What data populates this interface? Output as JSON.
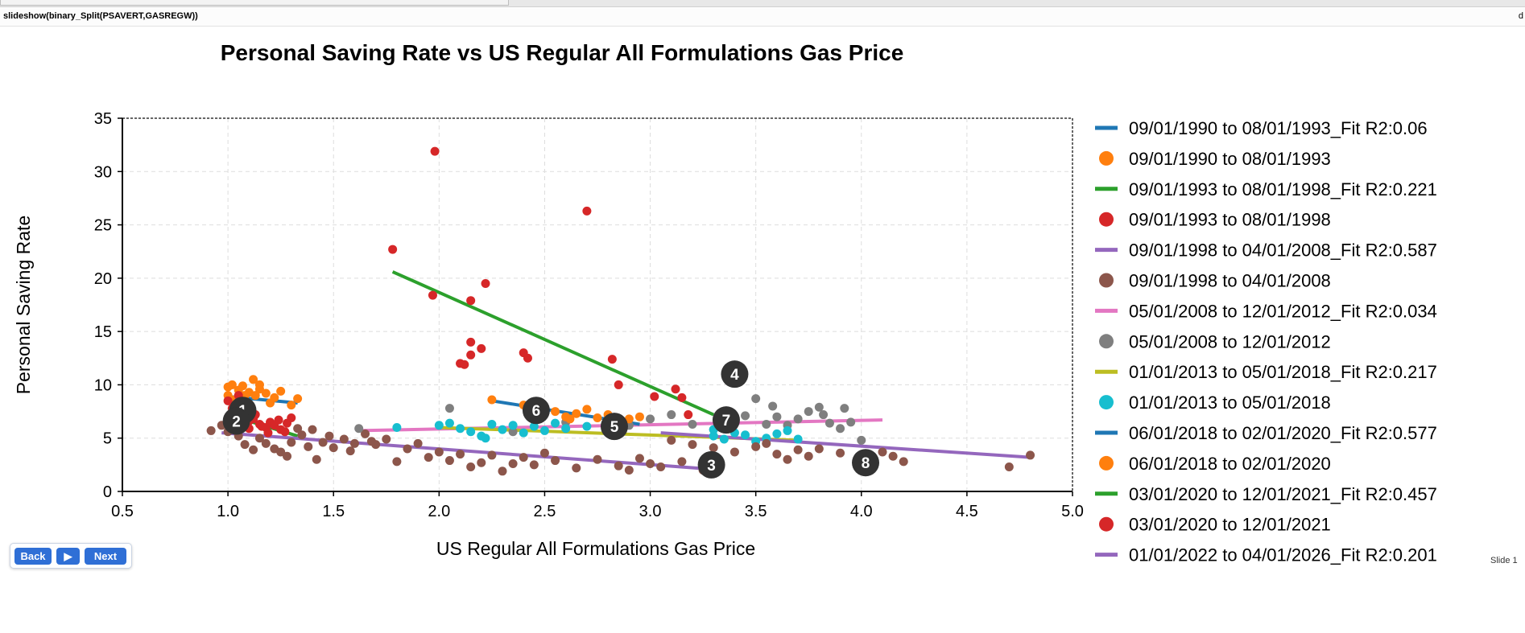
{
  "top_command": "slideshow(binary_Split(PSAVERT,GASREGW))",
  "top_right_char": "d",
  "controls": {
    "back_label": "Back",
    "play_label": "▶",
    "next_label": "Next"
  },
  "slide_label": "Slide 1",
  "chart_data": {
    "type": "scatter",
    "title": "Personal Saving Rate vs US Regular All Formulations Gas Price",
    "xlabel": "US Regular All Formulations Gas Price",
    "ylabel": "Personal Saving Rate",
    "xlim": [
      0.5,
      5.0
    ],
    "ylim": [
      0,
      35
    ],
    "xticks": [
      "0.5",
      "1.0",
      "1.5",
      "2.0",
      "2.5",
      "3.0",
      "3.5",
      "4.0",
      "4.5",
      "5.0"
    ],
    "yticks": [
      "0",
      "5",
      "10",
      "15",
      "20",
      "25",
      "30",
      "35"
    ],
    "grid": true,
    "legend_position": "right",
    "segments": [
      {
        "fit_label": "09/01/1990 to 08/01/1993_Fit R2:0.06",
        "scatter_label": "09/01/1990 to 08/01/1993",
        "fit_color": "#1f77b4",
        "point_color": "#ff7f0e",
        "fit": [
          [
            1.0,
            8.9
          ],
          [
            1.33,
            8.3
          ]
        ],
        "points": [
          [
            1.0,
            9.8
          ],
          [
            1.02,
            10.0
          ],
          [
            1.05,
            9.5
          ],
          [
            1.07,
            9.9
          ],
          [
            1.1,
            9.3
          ],
          [
            1.12,
            10.5
          ],
          [
            1.15,
            9.6
          ],
          [
            1.18,
            9.2
          ],
          [
            1.13,
            9.0
          ],
          [
            1.08,
            9.0
          ],
          [
            1.03,
            8.6
          ],
          [
            1.05,
            8.3
          ],
          [
            1.1,
            8.1
          ],
          [
            1.2,
            8.3
          ],
          [
            1.25,
            9.4
          ],
          [
            1.3,
            8.1
          ],
          [
            1.33,
            8.7
          ],
          [
            1.15,
            10.0
          ],
          [
            1.22,
            8.8
          ],
          [
            1.0,
            9.0
          ]
        ]
      },
      {
        "fit_label": "09/01/1993 to 08/01/1998_Fit R2:0.221",
        "scatter_label": "09/01/1993 to 08/01/1998",
        "fit_color": "#2ca02c",
        "point_color": "#d62728",
        "fit": [
          [
            1.0,
            7.2
          ],
          [
            1.33,
            5.2
          ]
        ],
        "points": [
          [
            1.05,
            9.0
          ],
          [
            1.0,
            8.5
          ],
          [
            1.05,
            7.3
          ],
          [
            1.08,
            7.0
          ],
          [
            1.1,
            6.6
          ],
          [
            1.12,
            6.8
          ],
          [
            1.15,
            6.3
          ],
          [
            1.18,
            6.0
          ],
          [
            1.2,
            6.5
          ],
          [
            1.22,
            6.2
          ],
          [
            1.25,
            5.8
          ],
          [
            1.28,
            6.4
          ],
          [
            1.3,
            6.9
          ],
          [
            1.1,
            5.9
          ],
          [
            1.13,
            7.2
          ],
          [
            1.16,
            6.1
          ],
          [
            1.02,
            7.8
          ],
          [
            1.24,
            6.7
          ],
          [
            1.27,
            5.6
          ],
          [
            1.19,
            5.5
          ]
        ]
      },
      {
        "fit_label": "09/01/1998 to 04/01/2008_Fit R2:0.587",
        "scatter_label": "09/01/1998 to 04/01/2008",
        "fit_color": "#9467bd",
        "point_color": "#8c564b",
        "fit": [
          [
            0.97,
            5.5
          ],
          [
            3.28,
            2.1
          ]
        ],
        "points": [
          [
            0.92,
            5.7
          ],
          [
            0.97,
            6.2
          ],
          [
            1.0,
            5.6
          ],
          [
            1.05,
            5.2
          ],
          [
            1.08,
            4.4
          ],
          [
            1.12,
            3.9
          ],
          [
            1.15,
            5.0
          ],
          [
            1.18,
            4.5
          ],
          [
            1.22,
            4.0
          ],
          [
            1.25,
            3.7
          ],
          [
            1.3,
            4.6
          ],
          [
            1.35,
            5.3
          ],
          [
            1.4,
            5.8
          ],
          [
            1.45,
            4.6
          ],
          [
            1.5,
            4.1
          ],
          [
            1.55,
            4.9
          ],
          [
            1.6,
            4.5
          ],
          [
            1.65,
            5.4
          ],
          [
            1.7,
            4.4
          ],
          [
            1.75,
            4.9
          ],
          [
            1.8,
            2.8
          ],
          [
            1.85,
            4.0
          ],
          [
            1.9,
            4.5
          ],
          [
            1.95,
            3.2
          ],
          [
            2.0,
            3.7
          ],
          [
            2.05,
            2.9
          ],
          [
            2.1,
            3.5
          ],
          [
            2.15,
            2.3
          ],
          [
            2.2,
            2.7
          ],
          [
            2.25,
            3.4
          ],
          [
            2.3,
            1.9
          ],
          [
            2.35,
            2.6
          ],
          [
            2.4,
            3.2
          ],
          [
            2.45,
            2.5
          ],
          [
            2.55,
            2.9
          ],
          [
            2.65,
            2.2
          ],
          [
            2.75,
            3.0
          ],
          [
            2.85,
            2.4
          ],
          [
            2.95,
            3.1
          ],
          [
            3.05,
            2.3
          ],
          [
            3.15,
            2.8
          ],
          [
            3.25,
            2.0
          ],
          [
            1.33,
            5.9
          ],
          [
            1.38,
            4.2
          ],
          [
            1.48,
            5.2
          ],
          [
            1.58,
            3.8
          ],
          [
            1.68,
            4.7
          ],
          [
            1.28,
            3.3
          ],
          [
            1.42,
            3.0
          ],
          [
            2.5,
            3.6
          ],
          [
            2.9,
            2.0
          ],
          [
            3.0,
            2.6
          ]
        ]
      },
      {
        "fit_label": "05/01/2008 to 12/01/2012_Fit R2:0.034",
        "scatter_label": "05/01/2008 to 12/01/2012",
        "fit_color": "#e377c2",
        "point_color": "#7f7f7f",
        "fit": [
          [
            1.62,
            5.7
          ],
          [
            4.1,
            6.7
          ]
        ],
        "points": [
          [
            1.62,
            5.9
          ],
          [
            2.05,
            7.8
          ],
          [
            2.35,
            5.6
          ],
          [
            2.6,
            6.5
          ],
          [
            2.9,
            6.2
          ],
          [
            3.0,
            6.8
          ],
          [
            3.1,
            7.2
          ],
          [
            3.2,
            6.3
          ],
          [
            3.3,
            5.8
          ],
          [
            3.4,
            6.6
          ],
          [
            3.45,
            7.1
          ],
          [
            3.5,
            8.7
          ],
          [
            3.55,
            6.3
          ],
          [
            3.6,
            7.0
          ],
          [
            3.65,
            6.2
          ],
          [
            3.7,
            6.8
          ],
          [
            3.75,
            7.5
          ],
          [
            3.8,
            7.9
          ],
          [
            3.82,
            7.2
          ],
          [
            3.85,
            6.4
          ],
          [
            3.9,
            5.9
          ],
          [
            3.92,
            7.8
          ],
          [
            3.95,
            6.5
          ],
          [
            4.0,
            4.8
          ],
          [
            3.35,
            6.9
          ],
          [
            3.58,
            8.0
          ]
        ]
      },
      {
        "fit_label": "01/01/2013 to 05/01/2018_Fit R2:0.217",
        "scatter_label": "01/01/2013 to 05/01/2018",
        "fit_color": "#bcbd22",
        "point_color": "#17becf",
        "fit": [
          [
            2.0,
            6.0
          ],
          [
            3.7,
            4.8
          ]
        ],
        "points": [
          [
            1.8,
            6.0
          ],
          [
            2.0,
            6.2
          ],
          [
            2.05,
            6.4
          ],
          [
            2.1,
            5.9
          ],
          [
            2.15,
            5.6
          ],
          [
            2.2,
            5.2
          ],
          [
            2.25,
            6.3
          ],
          [
            2.3,
            5.8
          ],
          [
            2.35,
            6.2
          ],
          [
            2.4,
            5.5
          ],
          [
            2.45,
            6.1
          ],
          [
            2.5,
            5.7
          ],
          [
            2.55,
            6.4
          ],
          [
            2.6,
            5.9
          ],
          [
            2.7,
            6.1
          ],
          [
            3.3,
            5.2
          ],
          [
            3.35,
            4.9
          ],
          [
            3.4,
            5.5
          ],
          [
            3.45,
            5.3
          ],
          [
            3.5,
            4.7
          ],
          [
            3.55,
            5.0
          ],
          [
            3.6,
            5.4
          ],
          [
            3.65,
            5.7
          ],
          [
            3.7,
            4.9
          ],
          [
            3.3,
            5.8
          ],
          [
            2.22,
            5.0
          ]
        ]
      },
      {
        "fit_label": "06/01/2018 to 02/01/2020_Fit R2:0.577",
        "scatter_label": "06/01/2018 to 02/01/2020",
        "fit_color": "#1f77b4",
        "point_color": "#ff7f0e",
        "fit": [
          [
            2.25,
            8.5
          ],
          [
            2.95,
            6.3
          ]
        ],
        "points": [
          [
            2.25,
            8.6
          ],
          [
            2.4,
            8.1
          ],
          [
            2.55,
            7.5
          ],
          [
            2.6,
            7.0
          ],
          [
            2.65,
            7.3
          ],
          [
            2.7,
            7.7
          ],
          [
            2.75,
            6.9
          ],
          [
            2.8,
            7.2
          ],
          [
            2.85,
            6.6
          ],
          [
            2.9,
            6.8
          ],
          [
            2.95,
            7.0
          ],
          [
            2.5,
            7.8
          ],
          [
            2.62,
            6.8
          ]
        ]
      },
      {
        "fit_label": "03/01/2020 to 12/01/2021_Fit R2:0.457",
        "scatter_label": "03/01/2020 to 12/01/2021",
        "fit_color": "#2ca02c",
        "point_color": "#d62728",
        "fit": [
          [
            1.78,
            20.6
          ],
          [
            3.3,
            7.2
          ]
        ],
        "points": [
          [
            1.78,
            22.7
          ],
          [
            1.98,
            31.9
          ],
          [
            1.97,
            18.4
          ],
          [
            2.15,
            17.9
          ],
          [
            2.22,
            19.5
          ],
          [
            2.15,
            14.0
          ],
          [
            2.2,
            13.4
          ],
          [
            2.1,
            12.0
          ],
          [
            2.15,
            12.8
          ],
          [
            2.4,
            13.0
          ],
          [
            2.42,
            12.5
          ],
          [
            2.7,
            26.3
          ],
          [
            2.82,
            12.4
          ],
          [
            2.85,
            10.0
          ],
          [
            3.02,
            8.9
          ],
          [
            3.12,
            9.6
          ],
          [
            3.15,
            8.8
          ],
          [
            3.18,
            7.2
          ],
          [
            2.12,
            11.9
          ]
        ]
      },
      {
        "fit_label": "01/01/2022 to 04/01/2026_Fit R2:0.201",
        "scatter_label": "",
        "fit_color": "#9467bd",
        "point_color": "#8c564b",
        "fit": [
          [
            3.05,
            5.5
          ],
          [
            4.8,
            3.2
          ]
        ],
        "points": [
          [
            3.1,
            4.8
          ],
          [
            3.2,
            4.4
          ],
          [
            3.3,
            4.1
          ],
          [
            3.4,
            3.7
          ],
          [
            3.5,
            4.2
          ],
          [
            3.6,
            3.5
          ],
          [
            3.7,
            3.9
          ],
          [
            3.75,
            3.3
          ],
          [
            3.8,
            4.0
          ],
          [
            3.9,
            3.6
          ],
          [
            4.05,
            3.1
          ],
          [
            4.1,
            3.7
          ],
          [
            4.2,
            2.8
          ],
          [
            4.7,
            2.3
          ],
          [
            4.8,
            3.4
          ],
          [
            3.55,
            4.5
          ],
          [
            3.65,
            3.0
          ],
          [
            4.15,
            3.3
          ]
        ]
      }
    ],
    "markers": [
      {
        "label": "1",
        "x": 1.07,
        "y": 7.6
      },
      {
        "label": "2",
        "x": 1.04,
        "y": 6.6
      },
      {
        "label": "3",
        "x": 3.29,
        "y": 2.5
      },
      {
        "label": "4",
        "x": 3.4,
        "y": 11.0
      },
      {
        "label": "5",
        "x": 2.83,
        "y": 6.1
      },
      {
        "label": "6",
        "x": 2.46,
        "y": 7.6
      },
      {
        "label": "7",
        "x": 3.36,
        "y": 6.7
      },
      {
        "label": "8",
        "x": 4.02,
        "y": 2.7
      }
    ]
  }
}
